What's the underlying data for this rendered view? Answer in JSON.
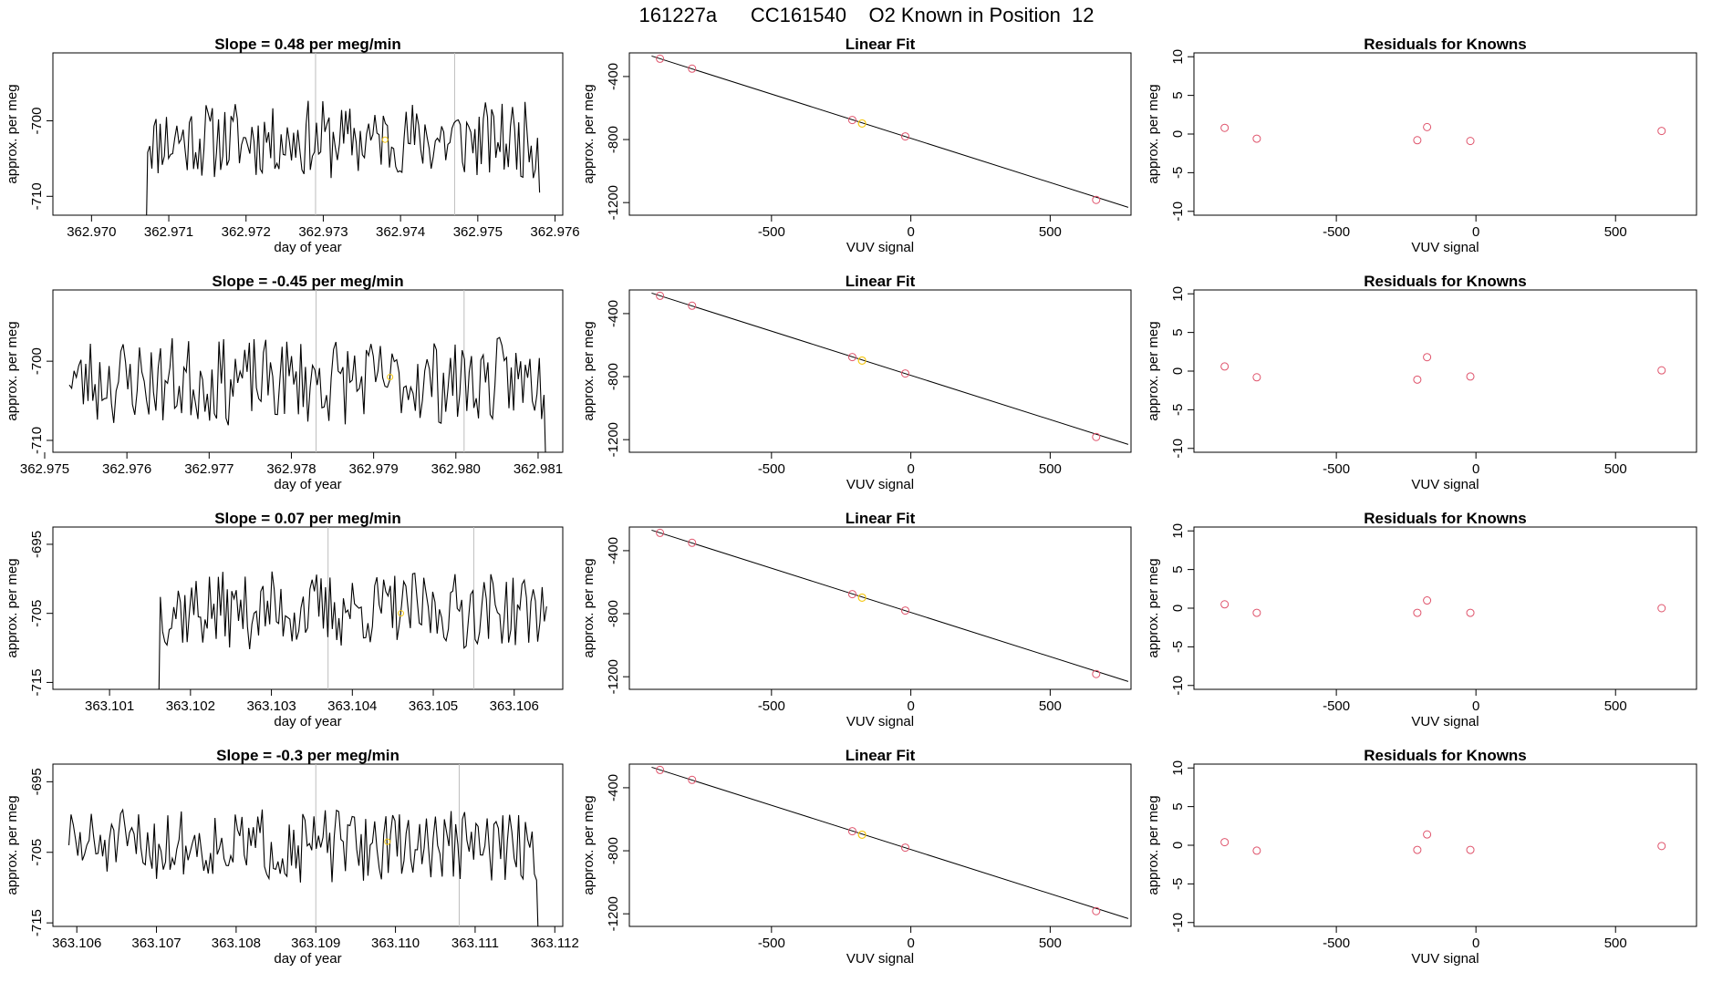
{
  "figure": {
    "title": "161227a      CC161540    O2 Known in Position  12"
  },
  "colors": {
    "line": "#000000",
    "point": "#df536b",
    "highlight": "#f5c710",
    "vline": "#bebebe",
    "frame": "#000000"
  },
  "chart_data": {
    "type": "multi-panel",
    "rows": [
      {
        "trace": {
          "title": "Slope =  0.48  per meg/min",
          "xlabel": "day of year",
          "ylabel": "approx. per meg",
          "xlim": [
            362.9695,
            362.9761
          ],
          "ylim": [
            -712.5,
            -691
          ],
          "xticks": [
            362.97,
            362.971,
            362.972,
            362.973,
            362.974,
            362.975,
            362.976
          ],
          "xtick_labels": [
            "362.970",
            "362.971",
            "362.972",
            "362.973",
            "362.974",
            "362.975",
            "362.976"
          ],
          "yticks": [
            -700,
            -710
          ],
          "ytick_labels": [
            "-700",
            "-710"
          ],
          "x_start": 362.9707,
          "x_end": 362.9758,
          "points": 190,
          "seed": 11,
          "level": -702.5,
          "amp": 3.0,
          "start_drop": -720,
          "end_drop": -709.5,
          "vlines": [
            362.9729,
            362.9747
          ],
          "marker": {
            "x": 362.9738,
            "y": -702.5
          }
        },
        "fit": {
          "title": "Linear Fit",
          "xlabel": "VUV signal",
          "ylabel": "approx. per meg",
          "xlim": [
            -1010,
            790
          ],
          "ylim": [
            -1280,
            -250
          ],
          "xticks": [
            -500,
            0,
            500
          ],
          "xtick_labels": [
            "-500",
            "0",
            "500"
          ],
          "yticks": [
            -400,
            -800,
            -1200
          ],
          "ytick_labels": [
            "-400",
            "-800",
            "-1200"
          ],
          "line": [
            [
              -930,
              -270
            ],
            [
              780,
              -1230
            ]
          ],
          "points": [
            [
              -900,
              -287
            ],
            [
              -785,
              -350
            ],
            [
              -210,
              -676
            ],
            [
              -20,
              -780
            ],
            [
              665,
              -1183
            ]
          ],
          "highlight": [
            [
              -175,
              -698
            ]
          ]
        },
        "resid": {
          "title": "Residuals for Knowns",
          "xlabel": "VUV signal",
          "ylabel": "approx. per meg",
          "xlim": [
            -1010,
            790
          ],
          "ylim": [
            -10.5,
            10.5
          ],
          "xticks": [
            -500,
            0,
            500
          ],
          "xtick_labels": [
            "-500",
            "0",
            "500"
          ],
          "yticks": [
            10,
            5,
            0,
            -5,
            -10
          ],
          "ytick_labels": [
            "10",
            "5",
            "0",
            "-5",
            "-10"
          ],
          "points": [
            [
              -900,
              0.8
            ],
            [
              -785,
              -0.6
            ],
            [
              -210,
              -0.8
            ],
            [
              -175,
              0.9
            ],
            [
              -20,
              -0.9
            ],
            [
              665,
              0.4
            ]
          ]
        }
      },
      {
        "trace": {
          "title": "Slope =  -0.45  per meg/min",
          "xlabel": "day of year",
          "ylabel": "approx. per meg",
          "xlim": [
            362.9751,
            362.9813
          ],
          "ylim": [
            -711.5,
            -691
          ],
          "xticks": [
            362.975,
            362.976,
            362.977,
            362.978,
            362.979,
            362.98,
            362.981
          ],
          "xtick_labels": [
            "362.975",
            "362.976",
            "362.977",
            "362.978",
            "362.979",
            "362.980",
            "362.981"
          ],
          "yticks": [
            -700,
            -710
          ],
          "ytick_labels": [
            "-700",
            "-710"
          ],
          "x_start": 362.9753,
          "x_end": 362.9811,
          "points": 205,
          "seed": 23,
          "level": -702.5,
          "amp": 3.2,
          "start_drop": -703,
          "end_drop": -716,
          "vlines": [
            362.9783,
            362.9801
          ],
          "marker": {
            "x": 362.9792,
            "y": -702
          }
        },
        "fit": {
          "title": "Linear Fit",
          "xlabel": "VUV signal",
          "ylabel": "approx. per meg",
          "xlim": [
            -1010,
            790
          ],
          "ylim": [
            -1280,
            -250
          ],
          "xticks": [
            -500,
            0,
            500
          ],
          "xtick_labels": [
            "-500",
            "0",
            "500"
          ],
          "yticks": [
            -400,
            -800,
            -1200
          ],
          "ytick_labels": [
            "-400",
            "-800",
            "-1200"
          ],
          "line": [
            [
              -930,
              -270
            ],
            [
              780,
              -1230
            ]
          ],
          "points": [
            [
              -900,
              -287
            ],
            [
              -785,
              -350
            ],
            [
              -210,
              -676
            ],
            [
              -20,
              -780
            ],
            [
              665,
              -1183
            ]
          ],
          "highlight": [
            [
              -175,
              -698
            ]
          ]
        },
        "resid": {
          "title": "Residuals for Knowns",
          "xlabel": "VUV signal",
          "ylabel": "approx. per meg",
          "xlim": [
            -1010,
            790
          ],
          "ylim": [
            -10.5,
            10.5
          ],
          "xticks": [
            -500,
            0,
            500
          ],
          "xtick_labels": [
            "-500",
            "0",
            "500"
          ],
          "yticks": [
            10,
            5,
            0,
            -5,
            -10
          ],
          "ytick_labels": [
            "10",
            "5",
            "0",
            "-5",
            "-10"
          ],
          "points": [
            [
              -900,
              0.6
            ],
            [
              -785,
              -0.8
            ],
            [
              -210,
              -1.1
            ],
            [
              -175,
              1.8
            ],
            [
              -20,
              -0.7
            ],
            [
              665,
              0.1
            ]
          ]
        }
      },
      {
        "trace": {
          "title": "Slope =  0.07  per meg/min",
          "xlabel": "day of year",
          "ylabel": "approx. per meg",
          "xlim": [
            363.1003,
            363.1066
          ],
          "ylim": [
            -716,
            -692.5
          ],
          "xticks": [
            363.101,
            363.102,
            363.103,
            363.104,
            363.105,
            363.106
          ],
          "xtick_labels": [
            "363.101",
            "363.102",
            "363.103",
            "363.104",
            "363.105",
            "363.106"
          ],
          "yticks": [
            -695,
            -705,
            -715
          ],
          "ytick_labels": [
            "-695",
            "-705",
            "-715"
          ],
          "x_start": 363.1016,
          "x_end": 363.1064,
          "points": 175,
          "seed": 37,
          "level": -704.5,
          "amp": 3.3,
          "start_drop": -725,
          "end_drop": -704,
          "vlines": [
            363.1037,
            363.1055
          ],
          "marker": {
            "x": 363.1046,
            "y": -705
          }
        },
        "fit": {
          "title": "Linear Fit",
          "xlabel": "VUV signal",
          "ylabel": "approx. per meg",
          "xlim": [
            -1010,
            790
          ],
          "ylim": [
            -1280,
            -250
          ],
          "xticks": [
            -500,
            0,
            500
          ],
          "xtick_labels": [
            "-500",
            "0",
            "500"
          ],
          "yticks": [
            -400,
            -800,
            -1200
          ],
          "ytick_labels": [
            "-400",
            "-800",
            "-1200"
          ],
          "line": [
            [
              -930,
              -270
            ],
            [
              780,
              -1230
            ]
          ],
          "points": [
            [
              -900,
              -287
            ],
            [
              -785,
              -350
            ],
            [
              -210,
              -676
            ],
            [
              -20,
              -780
            ],
            [
              665,
              -1183
            ]
          ],
          "highlight": [
            [
              -175,
              -698
            ]
          ]
        },
        "resid": {
          "title": "Residuals for Knowns",
          "xlabel": "VUV signal",
          "ylabel": "approx. per meg",
          "xlim": [
            -1010,
            790
          ],
          "ylim": [
            -10.5,
            10.5
          ],
          "xticks": [
            -500,
            0,
            500
          ],
          "xtick_labels": [
            "-500",
            "0",
            "500"
          ],
          "yticks": [
            10,
            5,
            0,
            -5,
            -10
          ],
          "ytick_labels": [
            "10",
            "5",
            "0",
            "-5",
            "-10"
          ],
          "points": [
            [
              -900,
              0.5
            ],
            [
              -785,
              -0.6
            ],
            [
              -210,
              -0.6
            ],
            [
              -175,
              1.0
            ],
            [
              -20,
              -0.6
            ],
            [
              665,
              0.0
            ]
          ]
        }
      },
      {
        "trace": {
          "title": "Slope =  -0.3  per meg/min",
          "xlabel": "day of year",
          "ylabel": "approx. per meg",
          "xlim": [
            363.1057,
            363.1121
          ],
          "ylim": [
            -715.5,
            -692.5
          ],
          "xticks": [
            363.106,
            363.107,
            363.108,
            363.109,
            363.11,
            363.111,
            363.112
          ],
          "xtick_labels": [
            "363.106",
            "363.107",
            "363.108",
            "363.109",
            "363.110",
            "363.111",
            "363.112"
          ],
          "yticks": [
            -695,
            -705,
            -715
          ],
          "ytick_labels": [
            "-695",
            "-705",
            "-715"
          ],
          "x_start": 363.1059,
          "x_end": 363.1118,
          "points": 210,
          "seed": 51,
          "level": -704,
          "amp": 3.0,
          "start_drop": -704,
          "end_drop": -720,
          "vlines": [
            363.109,
            363.1108
          ],
          "marker": {
            "x": 363.1099,
            "y": -703.5
          }
        },
        "fit": {
          "title": "Linear Fit",
          "xlabel": "VUV signal",
          "ylabel": "approx. per meg",
          "xlim": [
            -1010,
            790
          ],
          "ylim": [
            -1280,
            -250
          ],
          "xticks": [
            -500,
            0,
            500
          ],
          "xtick_labels": [
            "-500",
            "0",
            "500"
          ],
          "yticks": [
            -400,
            -800,
            -1200
          ],
          "ytick_labels": [
            "-400",
            "-800",
            "-1200"
          ],
          "line": [
            [
              -930,
              -270
            ],
            [
              780,
              -1230
            ]
          ],
          "points": [
            [
              -900,
              -287
            ],
            [
              -785,
              -350
            ],
            [
              -210,
              -676
            ],
            [
              -20,
              -780
            ],
            [
              665,
              -1183
            ]
          ],
          "highlight": [
            [
              -175,
              -698
            ]
          ]
        },
        "resid": {
          "title": "Residuals for Knowns",
          "xlabel": "VUV signal",
          "ylabel": "approx. per meg",
          "xlim": [
            -1010,
            790
          ],
          "ylim": [
            -10.5,
            10.5
          ],
          "xticks": [
            -500,
            0,
            500
          ],
          "xtick_labels": [
            "-500",
            "0",
            "500"
          ],
          "yticks": [
            10,
            5,
            0,
            -5,
            -10
          ],
          "ytick_labels": [
            "10",
            "5",
            "0",
            "-5",
            "-10"
          ],
          "points": [
            [
              -900,
              0.4
            ],
            [
              -785,
              -0.7
            ],
            [
              -210,
              -0.6
            ],
            [
              -175,
              1.4
            ],
            [
              -20,
              -0.6
            ],
            [
              665,
              -0.1
            ]
          ]
        }
      }
    ]
  }
}
